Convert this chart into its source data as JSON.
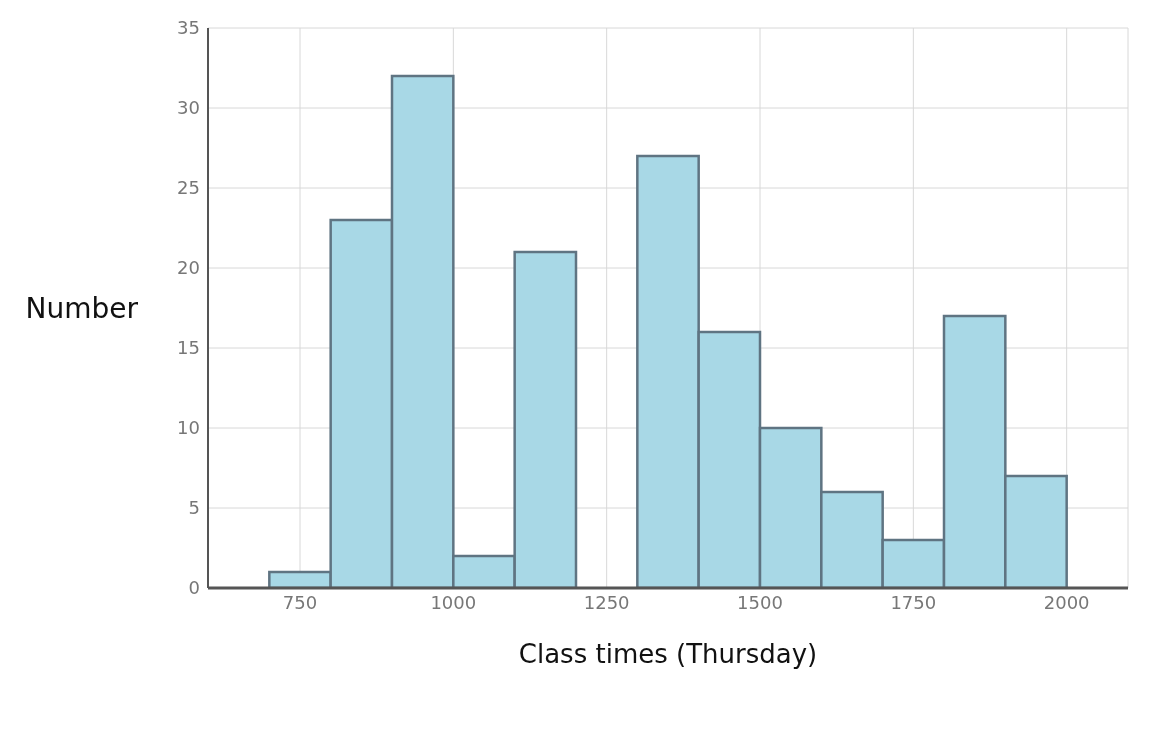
{
  "chart_data": {
    "type": "histogram",
    "xlabel": "Class times (Thursday)",
    "ylabel": "Number",
    "bins": [
      700,
      800,
      900,
      1000,
      1100,
      1200,
      1300,
      1400,
      1500,
      1600,
      1700,
      1800,
      1900,
      2000
    ],
    "values": [
      1,
      23,
      32,
      2,
      21,
      0,
      27,
      16,
      10,
      6,
      3,
      17,
      7
    ],
    "color": "#a8d8e6",
    "xlim": [
      600,
      2100
    ],
    "xticks": [
      750,
      1000,
      1250,
      1500,
      1750,
      2000
    ],
    "ylim": [
      0,
      35
    ],
    "yticks": [
      0,
      5,
      10,
      15,
      20,
      25,
      30,
      35
    ],
    "grid": true
  }
}
